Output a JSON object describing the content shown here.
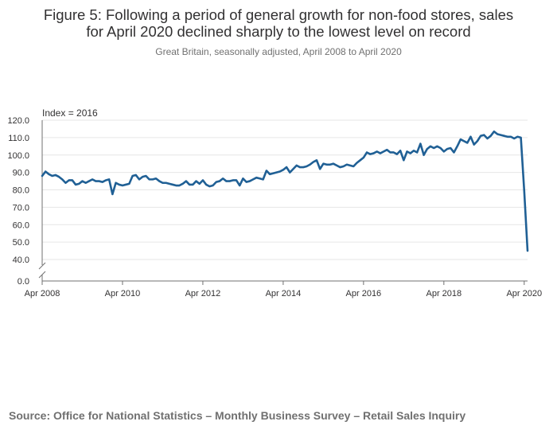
{
  "title_line1": "Figure 5: Following a period of general growth for non-food stores, sales",
  "title_line2": "for April 2020 declined sharply to the lowest level on record",
  "subtitle": "Great Britain, seasonally adjusted, April 2008 to April 2020",
  "source": "Source: Office for National Statistics – Monthly Business Survey – Retail Sales Inquiry",
  "colors": {
    "line": "#206095",
    "grid": "#e6e6e6",
    "axis": "#707070",
    "text": "#323132"
  },
  "chart_data": {
    "type": "line",
    "title": "Figure 5: Following a period of general growth for non-food stores, sales for April 2020 declined sharply to the lowest level on record",
    "subtitle": "Great Britain, seasonally adjusted, April 2008 to April 2020",
    "ylabel": "Index = 2016",
    "xlabel": "",
    "ylim": [
      40,
      120
    ],
    "y_axis_break": true,
    "y_ticks": [
      "0.0",
      "40.0",
      "50.0",
      "60.0",
      "70.0",
      "80.0",
      "90.0",
      "100.0",
      "110.0",
      "120.0"
    ],
    "x_ticks": [
      "Apr 2008",
      "Apr 2010",
      "Apr 2012",
      "Apr 2014",
      "Apr 2016",
      "Apr 2018",
      "Apr 2020"
    ],
    "grid": true,
    "series": [
      {
        "name": "Non-food stores",
        "start": "Apr 2008",
        "frequency": "monthly",
        "values": [
          88,
          90.5,
          89,
          88,
          88.5,
          87.5,
          86,
          84,
          85.5,
          85.5,
          83,
          83.5,
          85,
          84,
          85,
          86,
          85,
          85,
          84.5,
          85.5,
          86,
          77.5,
          84,
          83,
          82.5,
          83,
          83.5,
          88,
          88.5,
          86,
          87.5,
          88,
          86,
          86,
          86.5,
          85,
          84,
          84,
          83.5,
          83,
          82.5,
          82.5,
          83.5,
          85,
          83,
          83,
          85,
          83.5,
          85.5,
          83,
          82,
          82.5,
          84.5,
          85,
          86.5,
          85,
          85,
          85.5,
          85.5,
          82.5,
          86.5,
          84.5,
          85,
          86,
          87,
          86.5,
          86,
          91,
          89,
          89.5,
          90,
          90.5,
          91.5,
          93,
          90,
          92,
          94,
          93,
          93,
          93.5,
          94.5,
          96,
          97,
          92,
          95,
          94.5,
          94.5,
          95,
          94,
          93,
          93.5,
          94.5,
          94,
          93.5,
          95.5,
          97,
          98.5,
          101.5,
          100.5,
          101,
          102,
          101,
          102,
          103,
          101.5,
          101.5,
          100.5,
          102.5,
          97,
          102,
          101,
          102.5,
          101.5,
          106.5,
          100,
          103.5,
          105,
          104,
          105,
          104,
          102,
          103.5,
          104,
          101.5,
          105,
          109,
          108,
          107,
          110.5,
          106,
          108,
          111,
          111.5,
          109.5,
          111,
          113.5,
          112,
          111.5,
          111,
          110.5,
          110.5,
          109.5,
          110.5,
          110,
          79.5,
          45
        ]
      }
    ]
  }
}
